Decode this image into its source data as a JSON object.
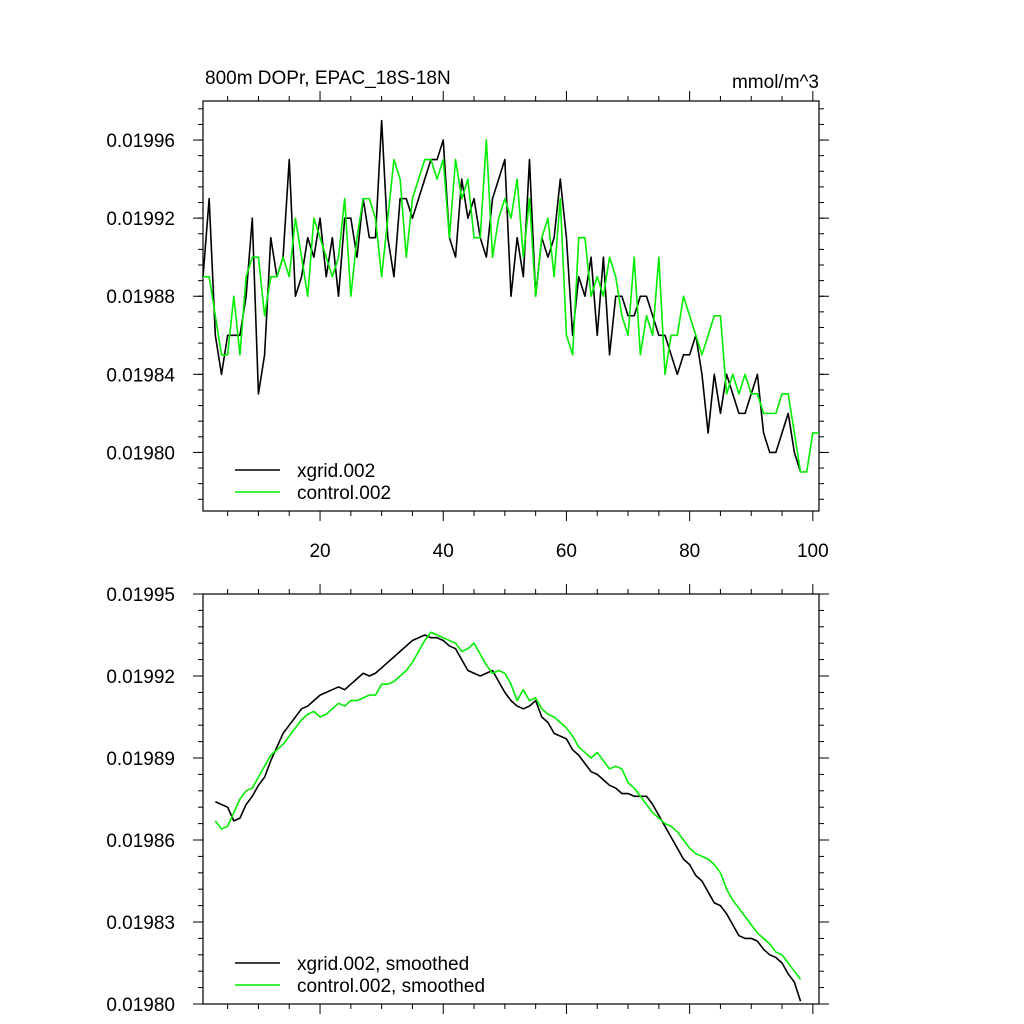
{
  "chart_data": [
    {
      "type": "line",
      "title": "800m DOPr, EPAC_18S-18N",
      "units": "mmol/m^3",
      "xlim": [
        1,
        101
      ],
      "ylim": [
        0.01977,
        0.01998
      ],
      "x_ticks": [
        20,
        40,
        60,
        80,
        100
      ],
      "y_ticks": [
        "0.01980",
        "0.01984",
        "0.01988",
        "0.01992",
        "0.01996"
      ],
      "legend_position": "bottom-left",
      "x_start": 1,
      "x_step": 1,
      "series": [
        {
          "name": "xgrid.002",
          "color": "#000000",
          "values": [
            0.01989,
            0.01993,
            0.01986,
            0.01984,
            0.01986,
            0.01986,
            0.01986,
            0.01988,
            0.01992,
            0.01983,
            0.01985,
            0.01991,
            0.01989,
            0.0199,
            0.01995,
            0.01988,
            0.01989,
            0.01991,
            0.0199,
            0.01992,
            0.01989,
            0.01991,
            0.01988,
            0.01992,
            0.01992,
            0.0199,
            0.01993,
            0.01991,
            0.01991,
            0.01997,
            0.01991,
            0.01989,
            0.01993,
            0.01993,
            0.01992,
            0.01993,
            0.01994,
            0.01995,
            0.01995,
            0.01996,
            0.01991,
            0.0199,
            0.01994,
            0.01992,
            0.01993,
            0.01991,
            0.0199,
            0.01993,
            0.01994,
            0.01995,
            0.01988,
            0.01991,
            0.01989,
            0.01995,
            0.01988,
            0.01991,
            0.0199,
            0.01991,
            0.01994,
            0.01991,
            0.01986,
            0.01989,
            0.01988,
            0.0199,
            0.01986,
            0.0199,
            0.01985,
            0.01988,
            0.01988,
            0.01987,
            0.01987,
            0.01988,
            0.01988,
            0.01987,
            0.01986,
            0.01986,
            0.01985,
            0.01984,
            0.01985,
            0.01985,
            0.01986,
            0.01984,
            0.01981,
            0.01984,
            0.01982,
            0.01984,
            0.01983,
            0.01982,
            0.01982,
            0.01983,
            0.01984,
            0.01981,
            0.0198,
            0.0198,
            0.01981,
            0.01982,
            0.0198,
            0.01979
          ]
        },
        {
          "name": "control.002",
          "color": "#00ee00",
          "values": [
            0.01989,
            0.01989,
            0.01987,
            0.01985,
            0.01985,
            0.01988,
            0.01985,
            0.01989,
            0.0199,
            0.0199,
            0.01987,
            0.01989,
            0.01989,
            0.0199,
            0.01989,
            0.01992,
            0.0199,
            0.01988,
            0.01992,
            0.01991,
            0.0199,
            0.01989,
            0.0199,
            0.01993,
            0.01988,
            0.01991,
            0.01993,
            0.01993,
            0.01992,
            0.01989,
            0.01992,
            0.01995,
            0.01994,
            0.0199,
            0.01993,
            0.01994,
            0.01995,
            0.01995,
            0.01994,
            0.01995,
            0.01991,
            0.01995,
            0.01993,
            0.01994,
            0.01991,
            0.01991,
            0.01996,
            0.0199,
            0.01992,
            0.01993,
            0.01992,
            0.01994,
            0.0199,
            0.01993,
            0.01988,
            0.01991,
            0.01992,
            0.01989,
            0.01993,
            0.01986,
            0.01985,
            0.01991,
            0.01991,
            0.01988,
            0.01989,
            0.01988,
            0.0199,
            0.01989,
            0.01987,
            0.01986,
            0.0199,
            0.01985,
            0.01987,
            0.01986,
            0.0199,
            0.01984,
            0.01986,
            0.01986,
            0.01988,
            0.01987,
            0.01986,
            0.01985,
            0.01986,
            0.01987,
            0.01987,
            0.01983,
            0.01984,
            0.01983,
            0.01984,
            0.01983,
            0.01983,
            0.01982,
            0.01982,
            0.01982,
            0.01983,
            0.01983,
            0.01981,
            0.01979,
            0.01979,
            0.01981,
            0.01981
          ]
        }
      ]
    },
    {
      "type": "line",
      "xlim": [
        1,
        101
      ],
      "ylim": [
        0.0198,
        0.01995
      ],
      "x_ticks": [
        20,
        40,
        60,
        80,
        100
      ],
      "y_ticks": [
        "0.01980",
        "0.01983",
        "0.01986",
        "0.01989",
        "0.01992",
        "0.01995"
      ],
      "legend_position": "bottom-left",
      "x_start": 3,
      "x_step": 1,
      "series": [
        {
          "name": "xgrid.002, smoothed",
          "color": "#000000",
          "values": [
            0.019874,
            0.019873,
            0.019872,
            0.019867,
            0.019868,
            0.019873,
            0.019876,
            0.01988,
            0.019883,
            0.019889,
            0.019894,
            0.019899,
            0.019902,
            0.019905,
            0.019908,
            0.019909,
            0.019911,
            0.019913,
            0.019914,
            0.019915,
            0.019916,
            0.019915,
            0.019917,
            0.019919,
            0.019921,
            0.01992,
            0.019921,
            0.019923,
            0.019925,
            0.019927,
            0.019929,
            0.019931,
            0.019933,
            0.019934,
            0.019935,
            0.019934,
            0.019934,
            0.019933,
            0.019931,
            0.01993,
            0.019926,
            0.019922,
            0.019921,
            0.01992,
            0.019921,
            0.019922,
            0.019918,
            0.019914,
            0.019911,
            0.019909,
            0.019908,
            0.019909,
            0.019911,
            0.019905,
            0.019903,
            0.019899,
            0.019898,
            0.019897,
            0.019893,
            0.019891,
            0.019888,
            0.019885,
            0.019884,
            0.019882,
            0.01988,
            0.019879,
            0.019877,
            0.019877,
            0.019876,
            0.019876,
            0.019876,
            0.019873,
            0.019869,
            0.019865,
            0.019861,
            0.019857,
            0.019853,
            0.019851,
            0.019847,
            0.019845,
            0.019841,
            0.019837,
            0.019836,
            0.019833,
            0.019829,
            0.019825,
            0.019824,
            0.019824,
            0.019823,
            0.01982,
            0.019818,
            0.019817,
            0.019815,
            0.019811,
            0.019808,
            0.019801
          ]
        },
        {
          "name": "control.002, smoothed",
          "color": "#00ee00",
          "values": [
            0.019867,
            0.019864,
            0.019865,
            0.01987,
            0.019875,
            0.019878,
            0.019879,
            0.019883,
            0.019887,
            0.019891,
            0.019893,
            0.019895,
            0.019898,
            0.019901,
            0.019904,
            0.019906,
            0.019907,
            0.019905,
            0.019906,
            0.019908,
            0.01991,
            0.019909,
            0.019911,
            0.019911,
            0.019912,
            0.019913,
            0.019913,
            0.019917,
            0.019917,
            0.019918,
            0.01992,
            0.019922,
            0.019925,
            0.019929,
            0.019933,
            0.019936,
            0.019935,
            0.019934,
            0.019933,
            0.019932,
            0.019929,
            0.01993,
            0.019932,
            0.019928,
            0.019924,
            0.019921,
            0.019922,
            0.019921,
            0.019917,
            0.019911,
            0.019915,
            0.019911,
            0.019912,
            0.019908,
            0.019906,
            0.019905,
            0.019903,
            0.019901,
            0.019898,
            0.019894,
            0.019892,
            0.01989,
            0.019892,
            0.019889,
            0.019886,
            0.019887,
            0.019886,
            0.019881,
            0.019879,
            0.019876,
            0.019873,
            0.01987,
            0.019868,
            0.019866,
            0.019865,
            0.019863,
            0.01986,
            0.019857,
            0.019855,
            0.019854,
            0.019853,
            0.019851,
            0.019848,
            0.019842,
            0.019838,
            0.019835,
            0.019832,
            0.019829,
            0.019826,
            0.019824,
            0.019822,
            0.019819,
            0.019818,
            0.019815,
            0.019812,
            0.019809
          ]
        }
      ]
    }
  ]
}
